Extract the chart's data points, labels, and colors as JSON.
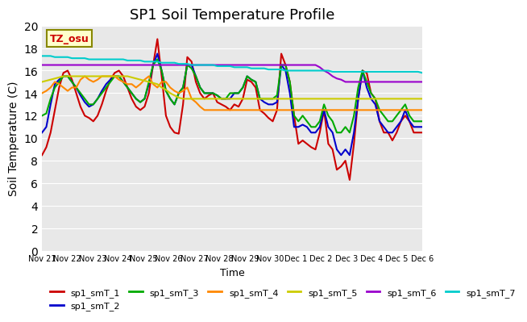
{
  "title": "SP1 Soil Temperature Profile",
  "xlabel": "Time",
  "ylabel": "Soil Temperature (C)",
  "ylim": [
    0,
    20
  ],
  "bg_color": "#e8e8e8",
  "tz_label": "TZ_osu",
  "x_tick_labels": [
    "Nov 21",
    "Nov 22",
    "Nov 23",
    "Nov 24",
    "Nov 25",
    "Nov 26",
    "Nov 27",
    "Nov 28",
    "Nov 29",
    "Nov 30",
    "Dec 1",
    "Dec 2",
    "Dec 3",
    "Dec 4",
    "Dec 5",
    "Dec 6"
  ],
  "series": {
    "sp1_smT_1": {
      "color": "#cc0000",
      "lw": 1.5,
      "y": [
        8.5,
        9.2,
        10.5,
        12.5,
        14.5,
        15.8,
        16.0,
        15.2,
        14.0,
        12.8,
        12.0,
        11.8,
        11.5,
        12.0,
        13.0,
        14.2,
        15.2,
        15.8,
        16.0,
        15.5,
        14.5,
        13.5,
        12.8,
        12.5,
        12.8,
        14.0,
        16.5,
        18.8,
        15.5,
        12.0,
        11.0,
        10.5,
        10.4,
        13.0,
        17.2,
        16.8,
        15.0,
        14.0,
        13.5,
        13.8,
        14.0,
        13.2,
        13.0,
        12.8,
        12.5,
        13.0,
        12.8,
        13.5,
        15.2,
        15.0,
        14.5,
        12.5,
        12.2,
        11.8,
        11.5,
        12.5,
        17.5,
        16.5,
        15.0,
        12.0,
        9.5,
        9.8,
        9.5,
        9.2,
        9.0,
        10.5,
        12.5,
        9.5,
        9.0,
        7.2,
        7.5,
        8.0,
        6.3,
        9.5,
        13.5,
        16.0,
        15.8,
        14.0,
        13.5,
        11.5,
        10.5,
        10.5,
        9.8,
        10.5,
        11.5,
        12.0,
        11.5,
        10.5,
        10.5,
        10.5
      ]
    },
    "sp1_smT_2": {
      "color": "#0000cc",
      "lw": 1.5,
      "y": [
        10.5,
        11.0,
        13.0,
        14.8,
        15.2,
        15.5,
        15.5,
        15.0,
        14.5,
        13.8,
        13.2,
        12.8,
        13.0,
        13.5,
        14.2,
        14.8,
        15.2,
        15.5,
        15.5,
        15.0,
        14.5,
        14.0,
        13.5,
        13.2,
        13.5,
        14.8,
        16.5,
        17.5,
        16.0,
        14.2,
        13.5,
        13.0,
        14.0,
        14.5,
        16.5,
        16.5,
        15.5,
        14.5,
        14.0,
        14.0,
        14.0,
        13.8,
        13.5,
        13.5,
        13.5,
        14.0,
        14.0,
        14.5,
        15.5,
        15.2,
        15.0,
        13.5,
        13.2,
        13.0,
        13.0,
        13.2,
        16.5,
        16.0,
        14.0,
        11.0,
        11.0,
        11.2,
        11.0,
        10.5,
        10.5,
        11.0,
        12.5,
        11.0,
        10.5,
        9.0,
        8.5,
        9.0,
        8.5,
        10.5,
        13.5,
        16.0,
        14.5,
        13.5,
        13.0,
        11.5,
        11.0,
        10.5,
        10.5,
        11.0,
        11.5,
        12.5,
        11.5,
        11.0,
        11.0,
        11.0
      ]
    },
    "sp1_smT_3": {
      "color": "#00aa00",
      "lw": 1.5,
      "y": [
        12.0,
        12.2,
        13.5,
        14.5,
        15.0,
        15.5,
        15.5,
        15.0,
        14.5,
        14.0,
        13.5,
        13.0,
        13.0,
        13.5,
        14.0,
        14.5,
        15.0,
        15.5,
        15.5,
        15.0,
        14.5,
        14.0,
        13.5,
        13.2,
        13.5,
        15.0,
        16.5,
        17.0,
        16.0,
        14.2,
        13.5,
        13.0,
        14.0,
        14.5,
        16.5,
        16.2,
        15.5,
        14.5,
        14.0,
        14.0,
        14.0,
        13.8,
        13.5,
        13.5,
        14.0,
        14.0,
        14.0,
        14.5,
        15.5,
        15.2,
        15.0,
        13.5,
        13.5,
        13.5,
        13.5,
        13.8,
        16.5,
        16.5,
        15.0,
        12.0,
        11.5,
        12.0,
        11.5,
        11.0,
        11.0,
        11.5,
        13.0,
        12.0,
        11.5,
        10.5,
        10.5,
        11.0,
        10.5,
        12.0,
        14.5,
        16.0,
        15.0,
        14.0,
        13.5,
        12.5,
        12.0,
        11.5,
        11.5,
        12.0,
        12.5,
        13.0,
        12.0,
        11.5,
        11.5,
        11.5
      ]
    },
    "sp1_smT_4": {
      "color": "#ff8800",
      "lw": 1.5,
      "y": [
        14.0,
        14.2,
        14.5,
        15.0,
        14.8,
        14.5,
        14.2,
        14.5,
        14.5,
        15.2,
        15.5,
        15.2,
        15.0,
        15.2,
        15.5,
        15.5,
        15.5,
        15.5,
        15.2,
        15.0,
        14.8,
        14.8,
        14.5,
        14.8,
        15.2,
        15.5,
        14.8,
        14.5,
        15.0,
        15.0,
        14.5,
        14.2,
        14.0,
        14.2,
        14.5,
        13.5,
        13.2,
        12.8,
        12.5,
        12.5,
        12.5,
        12.5,
        12.5,
        12.5,
        12.5,
        12.5,
        12.5,
        12.5,
        12.5,
        12.5,
        12.5,
        12.5,
        12.5,
        12.5,
        12.5,
        12.5,
        12.5,
        12.5,
        12.5,
        12.5,
        12.5,
        12.5,
        12.5,
        12.5,
        12.5,
        12.5,
        12.5,
        12.5,
        12.5,
        12.5,
        12.5,
        12.5,
        12.5,
        12.5,
        12.5,
        12.5,
        12.5,
        12.5,
        12.5,
        12.5,
        12.5,
        12.5,
        12.5,
        12.5,
        12.5,
        12.5,
        12.5,
        12.5,
        12.5,
        12.5
      ]
    },
    "sp1_smT_5": {
      "color": "#cccc00",
      "lw": 1.5,
      "y": [
        15.0,
        15.1,
        15.2,
        15.3,
        15.4,
        15.5,
        15.5,
        15.5,
        15.5,
        15.5,
        15.5,
        15.5,
        15.5,
        15.5,
        15.5,
        15.5,
        15.5,
        15.5,
        15.5,
        15.5,
        15.5,
        15.4,
        15.3,
        15.2,
        15.1,
        15.0,
        14.9,
        14.8,
        14.5,
        14.3,
        14.0,
        13.8,
        13.6,
        13.5,
        13.5,
        13.5,
        13.5,
        13.5,
        13.5,
        13.5,
        13.5,
        13.5,
        13.5,
        13.5,
        13.5,
        13.5,
        13.5,
        13.5,
        13.5,
        13.5,
        13.5,
        13.5,
        13.5,
        13.5,
        13.5,
        13.5,
        13.5,
        13.5,
        13.5,
        13.5,
        13.5,
        13.5,
        13.5,
        13.5,
        13.5,
        13.5,
        13.5,
        13.5,
        13.5,
        13.5,
        13.5,
        13.5,
        13.5,
        13.5,
        13.5,
        13.5,
        13.5,
        13.5,
        13.5,
        13.5,
        13.5,
        13.5,
        13.5,
        13.5,
        13.5,
        13.5,
        13.5,
        13.5,
        13.5,
        13.5
      ]
    },
    "sp1_smT_6": {
      "color": "#9900cc",
      "lw": 1.5,
      "y": [
        16.5,
        16.5,
        16.5,
        16.5,
        16.5,
        16.5,
        16.5,
        16.5,
        16.5,
        16.5,
        16.5,
        16.5,
        16.5,
        16.5,
        16.5,
        16.5,
        16.5,
        16.5,
        16.5,
        16.5,
        16.5,
        16.5,
        16.5,
        16.5,
        16.5,
        16.5,
        16.5,
        16.5,
        16.5,
        16.5,
        16.5,
        16.5,
        16.5,
        16.5,
        16.5,
        16.5,
        16.5,
        16.5,
        16.5,
        16.5,
        16.5,
        16.5,
        16.5,
        16.5,
        16.5,
        16.5,
        16.5,
        16.5,
        16.5,
        16.5,
        16.5,
        16.5,
        16.5,
        16.5,
        16.5,
        16.5,
        16.5,
        16.5,
        16.5,
        16.5,
        16.5,
        16.5,
        16.5,
        16.5,
        16.5,
        16.3,
        16.0,
        15.8,
        15.5,
        15.3,
        15.2,
        15.0,
        15.0,
        15.0,
        15.0,
        15.0,
        15.0,
        15.0,
        15.0,
        15.0,
        15.0,
        15.0,
        15.0,
        15.0,
        15.0,
        15.0,
        15.0,
        15.0,
        15.0,
        15.0
      ]
    },
    "sp1_smT_7": {
      "color": "#00cccc",
      "lw": 1.5,
      "y": [
        17.3,
        17.3,
        17.3,
        17.2,
        17.2,
        17.2,
        17.2,
        17.1,
        17.1,
        17.1,
        17.1,
        17.0,
        17.0,
        17.0,
        17.0,
        17.0,
        17.0,
        17.0,
        17.0,
        17.0,
        16.9,
        16.9,
        16.9,
        16.9,
        16.8,
        16.8,
        16.8,
        16.8,
        16.7,
        16.7,
        16.7,
        16.7,
        16.6,
        16.6,
        16.6,
        16.5,
        16.5,
        16.5,
        16.5,
        16.5,
        16.5,
        16.4,
        16.4,
        16.4,
        16.4,
        16.3,
        16.3,
        16.3,
        16.3,
        16.2,
        16.2,
        16.2,
        16.2,
        16.1,
        16.1,
        16.1,
        16.1,
        16.0,
        16.0,
        16.0,
        16.0,
        16.0,
        16.0,
        16.0,
        16.0,
        16.0,
        16.0,
        16.0,
        15.9,
        15.9,
        15.9,
        15.9,
        15.9,
        15.9,
        15.9,
        15.9,
        15.9,
        15.9,
        15.9,
        15.9,
        15.9,
        15.9,
        15.9,
        15.9,
        15.9,
        15.9,
        15.9,
        15.9,
        15.9,
        15.8
      ]
    }
  },
  "legend_order": [
    "sp1_smT_1",
    "sp1_smT_2",
    "sp1_smT_3",
    "sp1_smT_4",
    "sp1_smT_5",
    "sp1_smT_6",
    "sp1_smT_7"
  ]
}
